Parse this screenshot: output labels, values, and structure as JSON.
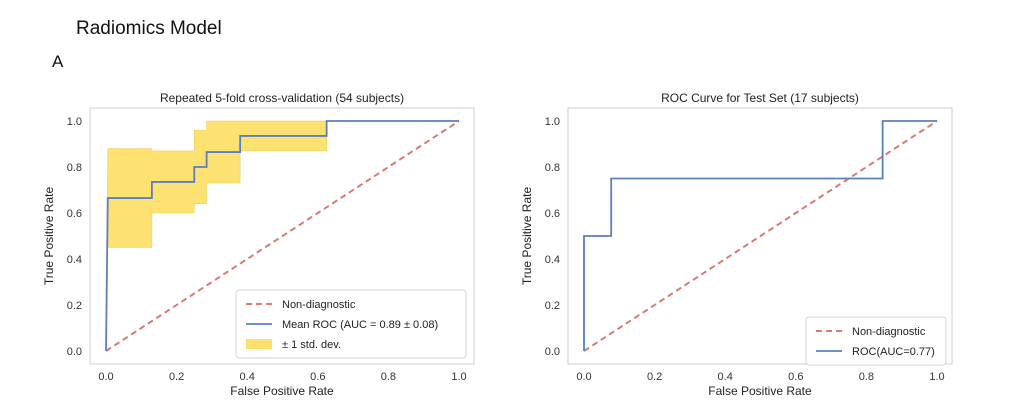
{
  "figure": {
    "title": "Radiomics Model",
    "panel_label": "A"
  },
  "colors": {
    "chance": "#d97b73",
    "roc": "#5a7fbf",
    "band": "#fde06a",
    "band_edge": "#e8c94a",
    "frame": "#cfcfcf"
  },
  "chart_data": [
    {
      "type": "line",
      "title": "Repeated 5-fold cross-validation (54 subjects)",
      "xlabel": "False Positive Rate",
      "ylabel": "True Positive Rate",
      "xlim": [
        0,
        1
      ],
      "ylim": [
        0,
        1
      ],
      "xticks": [
        "0.0",
        "0.2",
        "0.4",
        "0.6",
        "0.8",
        "1.0"
      ],
      "yticks": [
        "0.0",
        "0.2",
        "0.4",
        "0.6",
        "0.8",
        "1.0"
      ],
      "grid": false,
      "legend_position": "lower-right",
      "series": [
        {
          "name": "Non-diagnostic",
          "style": "dashed",
          "x": [
            0,
            1
          ],
          "y": [
            0,
            1
          ]
        },
        {
          "name": "Mean ROC (AUC = 0.89 ± 0.08)",
          "style": "solid",
          "x": [
            0,
            0.005,
            0.13,
            0.13,
            0.25,
            0.25,
            0.285,
            0.285,
            0.38,
            0.38,
            0.625,
            0.625,
            1.0
          ],
          "y": [
            0,
            0.665,
            0.665,
            0.735,
            0.735,
            0.8,
            0.8,
            0.865,
            0.865,
            0.935,
            0.935,
            1.0,
            1.0
          ]
        }
      ],
      "band": {
        "name": "± 1 std. dev.",
        "x": [
          0,
          0.005,
          0.13,
          0.13,
          0.25,
          0.25,
          0.285,
          0.285,
          0.38,
          0.38,
          0.625,
          0.625,
          1.0
        ],
        "upper": [
          0,
          0.88,
          0.88,
          0.87,
          0.87,
          0.96,
          0.96,
          1.0,
          1.0,
          1.0,
          1.0,
          1.0,
          1.0
        ],
        "lower": [
          0,
          0.45,
          0.45,
          0.6,
          0.6,
          0.64,
          0.64,
          0.73,
          0.73,
          0.87,
          0.87,
          1.0,
          1.0
        ]
      }
    },
    {
      "type": "line",
      "title": "ROC Curve for Test Set (17 subjects)",
      "xlabel": "False Positive Rate",
      "ylabel": "True Positive Rate",
      "xlim": [
        0,
        1
      ],
      "ylim": [
        0,
        1
      ],
      "xticks": [
        "0.0",
        "0.2",
        "0.4",
        "0.6",
        "0.8",
        "1.0"
      ],
      "yticks": [
        "0.0",
        "0.2",
        "0.4",
        "0.6",
        "0.8",
        "1.0"
      ],
      "grid": false,
      "legend_position": "lower-right",
      "series": [
        {
          "name": "Non-diagnostic",
          "style": "dashed",
          "x": [
            0,
            1
          ],
          "y": [
            0,
            1
          ]
        },
        {
          "name": "ROC(AUC=0.77)",
          "style": "solid",
          "x": [
            0,
            0,
            0.077,
            0.077,
            0.846,
            0.846,
            1.0
          ],
          "y": [
            0,
            0.5,
            0.5,
            0.75,
            0.75,
            1.0,
            1.0
          ]
        }
      ]
    }
  ]
}
